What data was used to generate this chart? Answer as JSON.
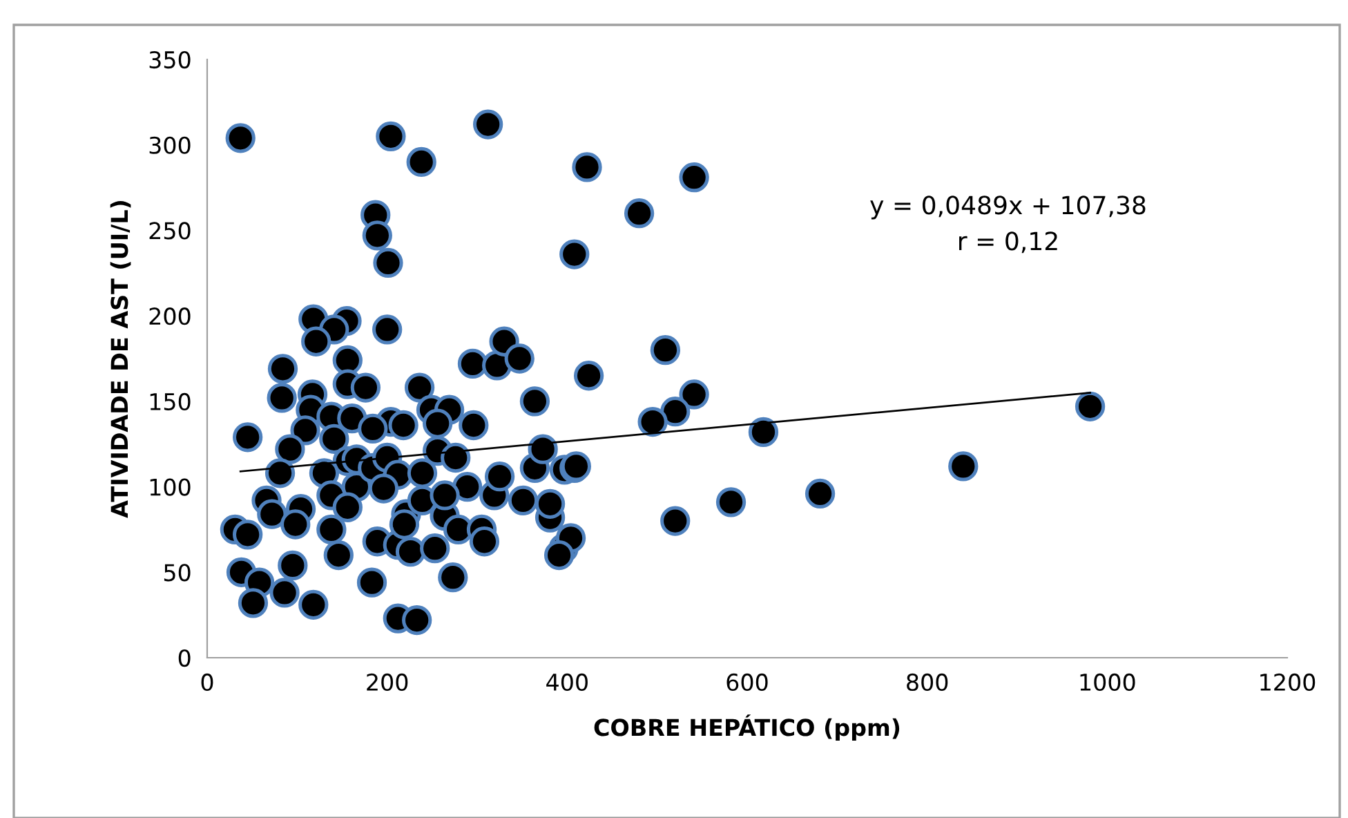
{
  "chart_data": {
    "type": "scatter",
    "xlabel": "COBRE HEPÁTICO (ppm)",
    "ylabel": "ATIVIDADE DE AST (UI/L)",
    "xlim": [
      0,
      1200
    ],
    "xticks": [
      0,
      200,
      400,
      600,
      800,
      1000,
      1200
    ],
    "ylim": [
      0,
      350
    ],
    "yticks": [
      0,
      50,
      100,
      150,
      200,
      250,
      300,
      350
    ],
    "grid": false,
    "annotations": [
      "y = 0,0489x + 107,38",
      "r = 0,12"
    ],
    "series": [
      {
        "color": "#000000",
        "marker": "circle",
        "x": [
          37,
          204,
          238,
          312,
          422,
          480,
          187,
          189,
          201,
          408,
          118,
          155,
          141,
          121,
          200,
          84,
          156,
          83,
          117,
          115,
          156,
          176,
          236,
          295,
          322,
          330,
          347,
          364,
          424,
          249,
          269,
          256,
          296,
          138,
          161,
          204,
          218,
          184,
          109,
          45,
          92,
          141,
          156,
          130,
          81,
          66,
          72,
          104,
          98,
          138,
          166,
          156,
          138,
          146,
          31,
          45,
          38,
          58,
          51,
          86,
          95,
          118,
          183,
          212,
          233,
          273,
          189,
          212,
          226,
          253,
          221,
          239,
          264,
          279,
          305,
          308,
          289,
          264,
          319,
          325,
          351,
          364,
          373,
          381,
          381,
          396,
          404,
          397,
          408,
          166,
          184,
          200,
          212,
          239,
          256,
          276,
          196,
          219,
          541,
          509,
          541,
          520,
          495,
          618,
          981,
          840,
          681,
          582,
          520,
          410,
          391
        ],
        "values": [
          304,
          305,
          290,
          312,
          287,
          260,
          259,
          247,
          231,
          236,
          198,
          197,
          192,
          185,
          192,
          169,
          174,
          152,
          154,
          145,
          160,
          158,
          158,
          172,
          171,
          185,
          175,
          150,
          165,
          145,
          145,
          137,
          136,
          141,
          140,
          138,
          136,
          134,
          133,
          129,
          122,
          128,
          115,
          108,
          108,
          92,
          84,
          87,
          78,
          95,
          100,
          88,
          75,
          60,
          75,
          72,
          50,
          44,
          32,
          38,
          54,
          31,
          44,
          23,
          22,
          47,
          68,
          66,
          62,
          64,
          84,
          92,
          83,
          75,
          75,
          68,
          100,
          95,
          95,
          106,
          92,
          111,
          122,
          82,
          90,
          64,
          70,
          110,
          111,
          116,
          111,
          117,
          107,
          108,
          121,
          117,
          99,
          78,
          281,
          180,
          154,
          144,
          138,
          132,
          147,
          112,
          96,
          91,
          80,
          112,
          60
        ]
      },
      {
        "type": "line",
        "color": "#000000",
        "x": [
          37,
          981
        ],
        "values": [
          109,
          155
        ]
      }
    ]
  }
}
